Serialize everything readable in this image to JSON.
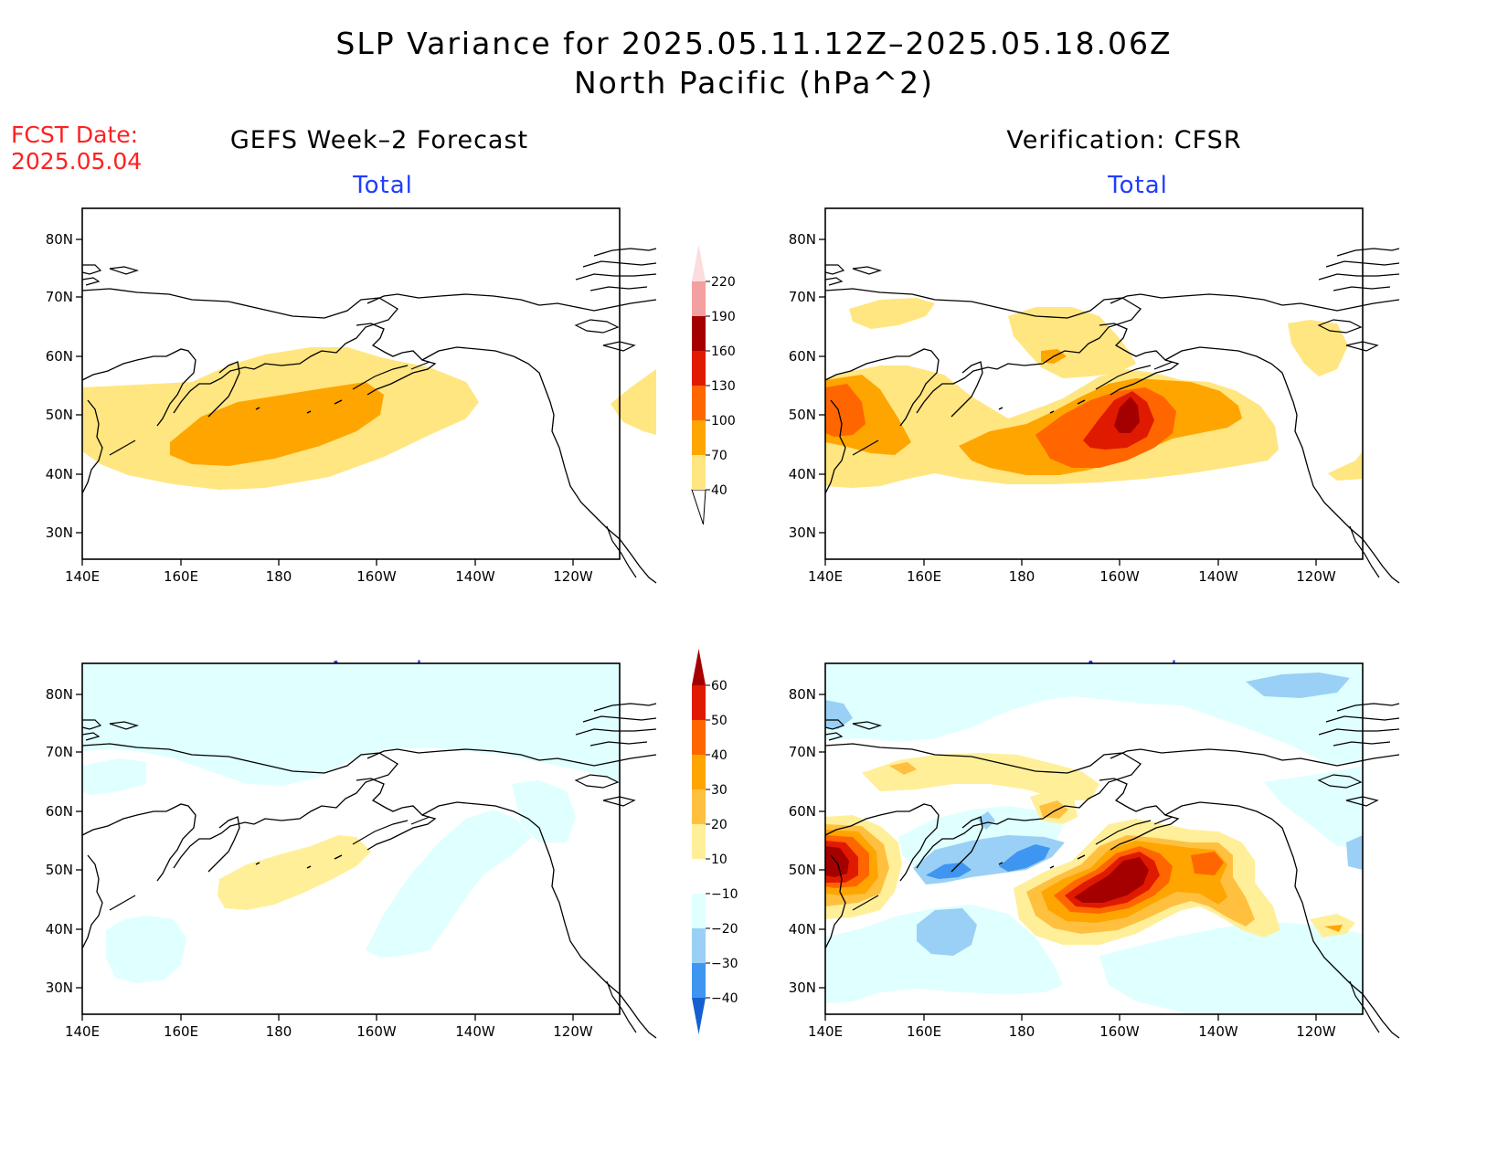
{
  "title": {
    "line1": "SLP Variance for 2025.05.11.12Z–2025.05.18.06Z",
    "line2": "North Pacific (hPa^2)"
  },
  "fcst_date": {
    "label": "FCST Date:",
    "value": "2025.05.04"
  },
  "columns": {
    "left": "GEFS Week–2 Forecast",
    "right": "Verification: CFSR"
  },
  "panels": {
    "forecast_total": "Total",
    "forecast_anomaly": "Anomaly",
    "verification_total": "Total",
    "verification_anomaly": "Anomaly"
  },
  "axes": {
    "lat_labels": [
      "80N",
      "70N",
      "60N",
      "50N",
      "40N",
      "30N"
    ],
    "lon_labels": [
      "140E",
      "160E",
      "180",
      "160W",
      "140W",
      "120W"
    ]
  },
  "total_colorbar": {
    "levels": [
      "40",
      "70",
      "100",
      "130",
      "160",
      "190",
      "220"
    ],
    "colors": [
      "#ffe680",
      "#ffa500",
      "#ff6600",
      "#e01a00",
      "#a50000",
      "#f2a0a0",
      "#fcdcdc"
    ]
  },
  "anomaly_colorbar": {
    "levels": [
      "60",
      "50",
      "40",
      "30",
      "20",
      "10",
      "−10",
      "−20",
      "−30",
      "−40"
    ],
    "warm_colors": [
      "#a50000",
      "#e01a00",
      "#ff6600",
      "#ffa500",
      "#ffc040",
      "#ffef99"
    ],
    "cool_colors": [
      "#e0ffff",
      "#9ad0f5",
      "#3f96f0",
      "#1560d0"
    ]
  }
}
